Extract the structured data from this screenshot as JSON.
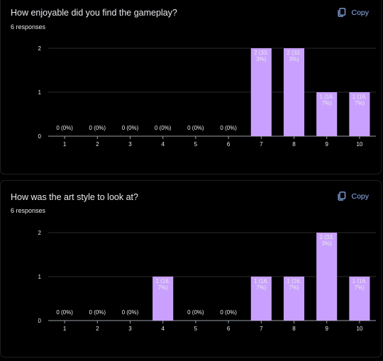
{
  "copy_label": "Copy",
  "colors": {
    "bar": "#c9a0ff",
    "axis": "#9aa0a6",
    "grid": "#2b2b2b",
    "accent": "#8ab4f8"
  },
  "icons": {
    "copy": "copy-icon"
  },
  "chart_data": [
    {
      "type": "bar",
      "title": "How enjoyable did you find the gameplay?",
      "responses": "6 responses",
      "categories": [
        "1",
        "2",
        "3",
        "4",
        "5",
        "6",
        "7",
        "8",
        "9",
        "10"
      ],
      "values": [
        0,
        0,
        0,
        0,
        0,
        0,
        2,
        2,
        1,
        1
      ],
      "labels": [
        [
          "0 (0%)"
        ],
        [
          "0 (0%)"
        ],
        [
          "0 (0%)"
        ],
        [
          "0 (0%)"
        ],
        [
          "0 (0%)"
        ],
        [
          "0 (0%)"
        ],
        [
          "2 (33.",
          "3%)"
        ],
        [
          "2 (33.",
          "3%)"
        ],
        [
          "1 (16.",
          "7%)"
        ],
        [
          "1 (16.",
          "7%)"
        ]
      ],
      "ylim": [
        0,
        2
      ],
      "yticks": [
        0,
        1,
        2
      ],
      "xlabel": "",
      "ylabel": "",
      "grid": true
    },
    {
      "type": "bar",
      "title": "How was the art style to look at?",
      "responses": "6 responses",
      "categories": [
        "1",
        "2",
        "3",
        "4",
        "5",
        "6",
        "7",
        "8",
        "9",
        "10"
      ],
      "values": [
        0,
        0,
        0,
        1,
        0,
        0,
        1,
        1,
        2,
        1
      ],
      "labels": [
        [
          "0 (0%)"
        ],
        [
          "0 (0%)"
        ],
        [
          "0 (0%)"
        ],
        [
          "1 (16.",
          "7%)"
        ],
        [
          "0 (0%)"
        ],
        [
          "0 (0%)"
        ],
        [
          "1 (16.",
          "7%)"
        ],
        [
          "1 (16.",
          "7%)"
        ],
        [
          "2 (33.",
          "3%)"
        ],
        [
          "1 (16.",
          "7%)"
        ]
      ],
      "ylim": [
        0,
        2
      ],
      "yticks": [
        0,
        1,
        2
      ],
      "xlabel": "",
      "ylabel": "",
      "grid": true
    }
  ]
}
